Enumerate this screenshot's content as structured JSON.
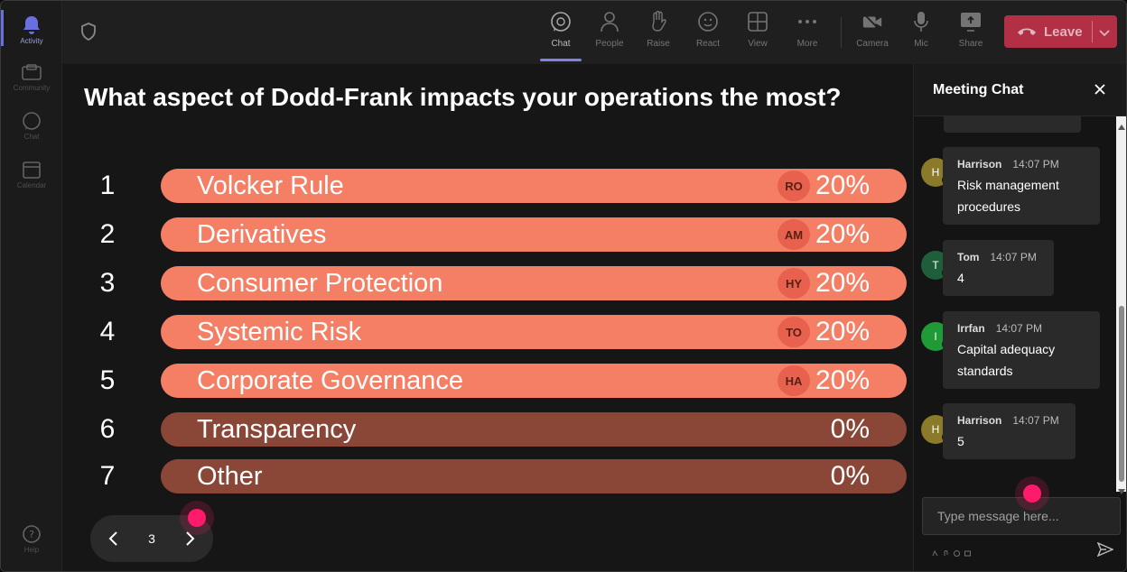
{
  "rail": {
    "items": [
      {
        "label": "Activity"
      },
      {
        "label": "Community"
      },
      {
        "label": "Chat"
      },
      {
        "label": "Calendar"
      },
      {
        "label": "Help"
      }
    ]
  },
  "toolbar": {
    "chat": "Chat",
    "people": "People",
    "raise": "Raise",
    "react": "React",
    "view": "View",
    "more": "More",
    "camera": "Camera",
    "mic": "Mic",
    "share": "Share",
    "leave": "Leave"
  },
  "poll": {
    "question": "What aspect of Dodd-Frank impacts your operations the most?",
    "options": [
      {
        "num": "1",
        "label": "Volcker Rule",
        "voter": "RO",
        "pct": "20%",
        "share": 0.2
      },
      {
        "num": "2",
        "label": "Derivatives",
        "voter": "AM",
        "pct": "20%",
        "share": 0.2
      },
      {
        "num": "3",
        "label": "Consumer Protection",
        "voter": "HY",
        "pct": "20%",
        "share": 0.2
      },
      {
        "num": "4",
        "label": "Systemic Risk",
        "voter": "TO",
        "pct": "20%",
        "share": 0.2
      },
      {
        "num": "5",
        "label": "Corporate Governance",
        "voter": "HA",
        "pct": "20%",
        "share": 0.2
      },
      {
        "num": "6",
        "label": "Transparency",
        "voter": "",
        "pct": "0%",
        "share": 0
      },
      {
        "num": "7",
        "label": "Other",
        "voter": "",
        "pct": "0%",
        "share": 0
      }
    ],
    "page": "3"
  },
  "chat": {
    "title": "Meeting Chat",
    "messages": [
      {
        "initial": "H",
        "name": "Harrison",
        "time": "14:07 PM",
        "text": "Risk management procedures",
        "avatar_color": "#8a7a2a"
      },
      {
        "initial": "T",
        "name": "Tom",
        "time": "14:07 PM",
        "text": "4",
        "avatar_color": "#1f5e3a"
      },
      {
        "initial": "I",
        "name": "Irrfan",
        "time": "14:07 PM",
        "text": "Capital adequacy standards",
        "avatar_color": "#1f9a36"
      },
      {
        "initial": "H",
        "name": "Harrison",
        "time": "14:07 PM",
        "text": "5",
        "avatar_color": "#8a7a2a"
      }
    ],
    "compose_placeholder": "Type message here..."
  },
  "colors": {
    "bar_filled": "#f47f65",
    "bar_empty": "#8a4636",
    "leave": "#c4314b",
    "accent": "#7b83eb",
    "cursor": "#ff1a6c"
  }
}
